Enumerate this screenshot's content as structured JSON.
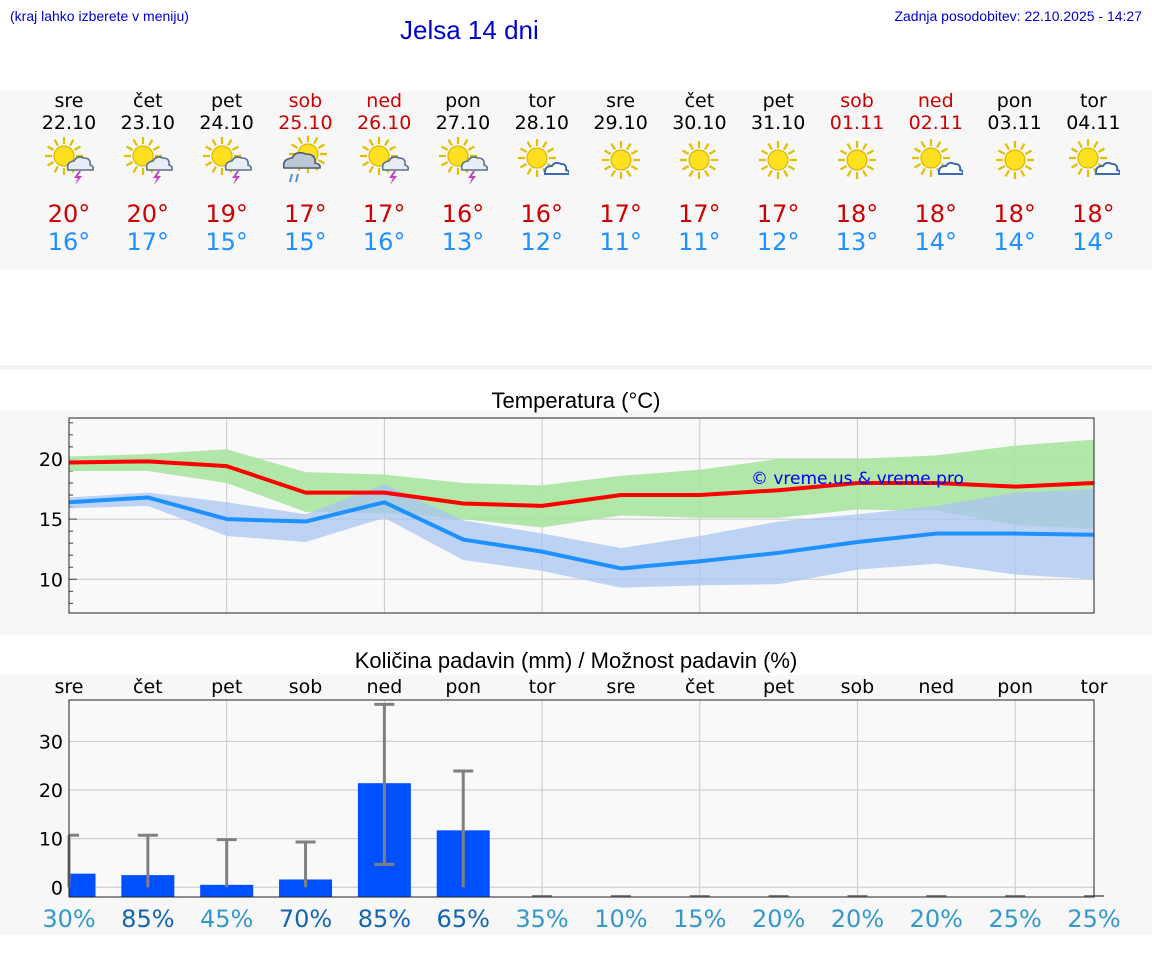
{
  "header": {
    "location_hint": "(kraj lahko izberete v meniju)",
    "title": "Jelsa 14 dni",
    "updated": "Zadnja posodobitev: 22.10.2025 - 14:27"
  },
  "days": [
    {
      "name": "sre",
      "date": "22.10",
      "icon": "sun-cloud-thunder-icon",
      "tmax": "20°",
      "tmin": "16°",
      "weekend": false
    },
    {
      "name": "čet",
      "date": "23.10",
      "icon": "sun-cloud-thunder-icon",
      "tmax": "20°",
      "tmin": "17°",
      "weekend": false
    },
    {
      "name": "pet",
      "date": "24.10",
      "icon": "sun-cloud-thunder-icon",
      "tmax": "19°",
      "tmin": "15°",
      "weekend": false
    },
    {
      "name": "sob",
      "date": "25.10",
      "icon": "sun-cloud-rain-icon",
      "tmax": "17°",
      "tmin": "15°",
      "weekend": true
    },
    {
      "name": "ned",
      "date": "26.10",
      "icon": "sun-cloud-thunder-icon",
      "tmax": "17°",
      "tmin": "16°",
      "weekend": true
    },
    {
      "name": "pon",
      "date": "27.10",
      "icon": "sun-cloud-thunder-icon",
      "tmax": "16°",
      "tmin": "13°",
      "weekend": false
    },
    {
      "name": "tor",
      "date": "28.10",
      "icon": "sun-small-cloud-icon",
      "tmax": "16°",
      "tmin": "12°",
      "weekend": false
    },
    {
      "name": "sre",
      "date": "29.10",
      "icon": "sun-icon",
      "tmax": "17°",
      "tmin": "11°",
      "weekend": false
    },
    {
      "name": "čet",
      "date": "30.10",
      "icon": "sun-icon",
      "tmax": "17°",
      "tmin": "11°",
      "weekend": false
    },
    {
      "name": "pet",
      "date": "31.10",
      "icon": "sun-icon",
      "tmax": "17°",
      "tmin": "12°",
      "weekend": false
    },
    {
      "name": "sob",
      "date": "01.11",
      "icon": "sun-icon",
      "tmax": "18°",
      "tmin": "13°",
      "weekend": true
    },
    {
      "name": "ned",
      "date": "02.11",
      "icon": "sun-small-cloud-icon",
      "tmax": "18°",
      "tmin": "14°",
      "weekend": true
    },
    {
      "name": "pon",
      "date": "03.11",
      "icon": "sun-icon",
      "tmax": "18°",
      "tmin": "14°",
      "weekend": false
    },
    {
      "name": "tor",
      "date": "04.11",
      "icon": "sun-small-cloud-icon",
      "tmax": "18°",
      "tmin": "14°",
      "weekend": false
    }
  ],
  "colors": {
    "max_line": "#ff0000",
    "max_band": "#a8e4a0",
    "min_line": "#1e90ff",
    "min_band": "#aac4f2",
    "bar": "#0050ff",
    "whisker": "#808080",
    "prob_high": "#1464b4",
    "prob_low": "#3399cc"
  },
  "chart_data": [
    {
      "type": "line",
      "title": "Temperatura (°C)",
      "watermark": "© vreme.us & vreme.pro",
      "ylim": [
        7.2,
        23.4
      ],
      "yticks": [
        10,
        15,
        20
      ],
      "series": [
        {
          "name": "max",
          "values": [
            19.7,
            19.8,
            19.4,
            17.2,
            17.2,
            16.3,
            16.1,
            17.0,
            17.0,
            17.4,
            18.0,
            18.0,
            17.7,
            18.0
          ],
          "upper": [
            20.2,
            20.4,
            20.8,
            18.9,
            18.7,
            18.0,
            17.8,
            18.6,
            19.1,
            20.0,
            20.0,
            20.3,
            21.1,
            21.6
          ],
          "lower": [
            19.0,
            19.0,
            18.0,
            15.6,
            15.5,
            15.0,
            14.3,
            15.3,
            15.1,
            15.1,
            15.8,
            15.7,
            14.5,
            14.2
          ]
        },
        {
          "name": "min",
          "values": [
            16.4,
            16.8,
            15.0,
            14.8,
            16.4,
            13.3,
            12.3,
            10.9,
            11.5,
            12.2,
            13.1,
            13.8,
            13.8,
            13.7
          ],
          "upper": [
            16.8,
            17.2,
            16.4,
            15.4,
            17.9,
            14.9,
            13.8,
            12.6,
            13.6,
            14.8,
            15.4,
            16.1,
            17.2,
            17.5
          ],
          "lower": [
            15.9,
            16.1,
            13.6,
            13.1,
            15.1,
            11.6,
            10.7,
            9.3,
            9.5,
            9.6,
            10.8,
            11.3,
            10.4,
            10.0
          ]
        }
      ]
    },
    {
      "type": "bar",
      "title": "Količina padavin (mm) / Možnost padavin (%)",
      "categories": [
        "sre",
        "čet",
        "pet",
        "sob",
        "ned",
        "pon",
        "tor",
        "sre",
        "čet",
        "pet",
        "sob",
        "ned",
        "pon",
        "tor"
      ],
      "ylim": [
        -2,
        38.5
      ],
      "yticks": [
        0,
        10,
        20,
        30
      ],
      "values": [
        2.8,
        2.5,
        0.5,
        1.6,
        21.4,
        11.7,
        0,
        0,
        0,
        0,
        0,
        0,
        0,
        0
      ],
      "err_low": [
        0,
        0,
        0,
        0,
        4.7,
        0,
        0,
        0,
        0,
        0,
        0,
        0,
        0,
        0
      ],
      "err_high": [
        10.7,
        10.7,
        9.8,
        9.3,
        37.6,
        23.9,
        0,
        0,
        0,
        0,
        0,
        0,
        0,
        0
      ],
      "probability": [
        "30%",
        "85%",
        "45%",
        "70%",
        "85%",
        "65%",
        "35%",
        "10%",
        "15%",
        "20%",
        "20%",
        "20%",
        "25%",
        "25%"
      ]
    }
  ]
}
